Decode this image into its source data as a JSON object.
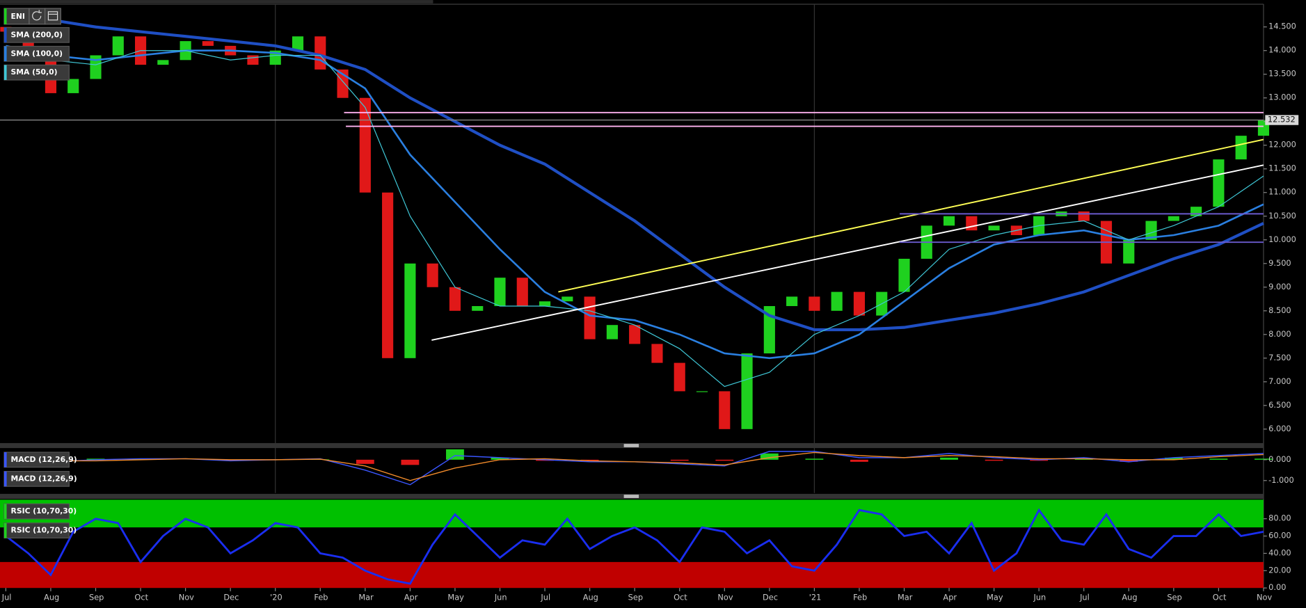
{
  "chart_data": [
    {
      "type": "candlestick",
      "symbol": "ENI",
      "up_color": "#1fd11f",
      "down_color": "#e01818",
      "x": [
        0,
        0.5,
        1,
        1.5,
        2,
        2.5,
        3,
        3.5,
        4,
        4.5,
        5,
        5.5,
        6,
        6.5,
        7,
        7.5,
        8,
        8.5,
        9,
        9.5,
        10,
        10.5,
        11,
        11.5,
        12,
        12.5,
        13,
        13.5,
        14,
        14.5,
        15,
        15.5,
        16,
        16.5,
        17,
        17.5,
        18,
        18.5,
        19,
        19.5,
        20,
        20.5,
        21,
        21.5,
        22,
        22.5,
        23,
        23.5,
        24,
        24.5,
        25,
        25.5,
        26,
        26.5,
        27,
        27.5,
        28
      ],
      "open": [
        14.5,
        14.4,
        14.0,
        13.1,
        13.4,
        13.9,
        14.3,
        13.7,
        13.8,
        14.2,
        14.1,
        13.9,
        13.7,
        14.0,
        14.3,
        13.6,
        13.0,
        11.0,
        7.5,
        9.5,
        9.0,
        8.5,
        8.6,
        9.2,
        8.6,
        8.7,
        8.8,
        7.9,
        8.2,
        7.8,
        7.4,
        6.8,
        6.8,
        6.0,
        7.6,
        8.6,
        8.8,
        8.5,
        8.9,
        8.4,
        8.9,
        9.6,
        10.3,
        10.5,
        10.2,
        10.3,
        10.1,
        10.5,
        10.6,
        10.4,
        9.5,
        10.0,
        10.4,
        10.5,
        10.7,
        11.7,
        12.2
      ],
      "close": [
        14.4,
        14.0,
        13.1,
        13.4,
        13.9,
        14.3,
        13.7,
        13.8,
        14.2,
        14.1,
        13.9,
        13.7,
        14.0,
        14.3,
        13.6,
        13.0,
        11.0,
        7.5,
        9.5,
        9.0,
        8.5,
        8.6,
        9.2,
        8.6,
        8.7,
        8.8,
        7.9,
        8.2,
        7.8,
        7.4,
        6.8,
        6.8,
        6.0,
        7.6,
        8.6,
        8.8,
        8.5,
        8.9,
        8.4,
        8.9,
        9.6,
        10.3,
        10.5,
        10.2,
        10.3,
        10.1,
        10.5,
        10.6,
        10.4,
        9.5,
        10.0,
        10.4,
        10.5,
        10.7,
        11.7,
        12.2,
        12.532
      ],
      "series": [
        {
          "name": "SMA (200,0)",
          "color": "#1f4fc4",
          "width": 3.5,
          "x": [
            0,
            1,
            2,
            3,
            4,
            5,
            6,
            7,
            8,
            9,
            10,
            11,
            12,
            13,
            14,
            15,
            16,
            17,
            18,
            19,
            20,
            21,
            22,
            23,
            24,
            25,
            26,
            27,
            28
          ],
          "values": [
            null,
            14.65,
            14.5,
            14.4,
            14.3,
            14.2,
            14.1,
            13.9,
            13.6,
            13.0,
            12.5,
            12.0,
            11.6,
            11.0,
            10.4,
            9.7,
            9.0,
            8.4,
            8.1,
            8.1,
            8.15,
            8.3,
            8.45,
            8.65,
            8.9,
            9.25,
            9.6,
            9.9,
            10.35
          ]
        },
        {
          "name": "SMA (100,0)",
          "color": "#2a7fe0",
          "width": 2.2,
          "x": [
            0,
            1,
            2,
            3,
            4,
            5,
            6,
            7,
            8,
            9,
            10,
            11,
            12,
            13,
            14,
            15,
            16,
            17,
            18,
            19,
            20,
            21,
            22,
            23,
            24,
            25,
            26,
            27,
            28
          ],
          "values": [
            14.1,
            13.9,
            13.8,
            13.9,
            14.0,
            14.0,
            13.95,
            13.8,
            13.2,
            11.8,
            10.8,
            9.8,
            8.9,
            8.4,
            8.3,
            8.0,
            7.6,
            7.5,
            7.6,
            8.0,
            8.7,
            9.4,
            9.9,
            10.1,
            10.2,
            10.0,
            10.1,
            10.3,
            10.75
          ]
        },
        {
          "name": "SMA (50,0)",
          "color": "#3fc7d6",
          "width": 1,
          "x": [
            0,
            1,
            2,
            3,
            4,
            5,
            6,
            7,
            8,
            9,
            10,
            11,
            12,
            13,
            14,
            15,
            16,
            17,
            18,
            19,
            20,
            21,
            22,
            23,
            24,
            25,
            26,
            27,
            28
          ],
          "values": [
            14.0,
            13.8,
            13.7,
            14.0,
            14.0,
            13.8,
            13.9,
            13.9,
            12.8,
            10.5,
            9.0,
            8.6,
            8.6,
            8.5,
            8.2,
            7.7,
            6.9,
            7.2,
            8.0,
            8.4,
            8.9,
            9.8,
            10.1,
            10.3,
            10.4,
            10.0,
            10.3,
            10.7,
            11.35
          ]
        }
      ],
      "lines": [
        {
          "color": "#ffff55",
          "x": [
            12.3,
            28
          ],
          "values": [
            8.9,
            12.12
          ]
        },
        {
          "color": "#ffffff",
          "x": [
            9.48,
            28
          ],
          "values": [
            7.88,
            11.58
          ]
        },
        {
          "color": "#ffb3f2",
          "x": [
            7.53,
            28
          ],
          "values": [
            12.69,
            12.69
          ]
        },
        {
          "color": "#ffb3f2",
          "x": [
            7.57,
            28
          ],
          "values": [
            12.4,
            12.4
          ]
        },
        {
          "color": "#6a5acd",
          "x": [
            19.9,
            28
          ],
          "values": [
            10.55,
            10.55
          ]
        },
        {
          "color": "#6a5acd",
          "x": [
            19.9,
            28
          ],
          "values": [
            9.95,
            9.95
          ]
        }
      ],
      "last_price": 12.532,
      "xlim": [
        -0.13,
        28.0
      ],
      "xgrid": [
        6,
        18
      ],
      "xticks": [
        {
          "value": 0,
          "label": "Jul"
        },
        {
          "value": 1,
          "label": "Aug"
        },
        {
          "value": 2,
          "label": "Sep"
        },
        {
          "value": 3,
          "label": "Oct"
        },
        {
          "value": 4,
          "label": "Nov"
        },
        {
          "value": 5,
          "label": "Dec"
        },
        {
          "value": 6,
          "label": "'20"
        },
        {
          "value": 7,
          "label": "Feb"
        },
        {
          "value": 8,
          "label": "Mar"
        },
        {
          "value": 9,
          "label": "Apr"
        },
        {
          "value": 10,
          "label": "May"
        },
        {
          "value": 11,
          "label": "Jun"
        },
        {
          "value": 12,
          "label": "Jul"
        },
        {
          "value": 13,
          "label": "Aug"
        },
        {
          "value": 14,
          "label": "Sep"
        },
        {
          "value": 15,
          "label": "Oct"
        },
        {
          "value": 16,
          "label": "Nov"
        },
        {
          "value": 17,
          "label": "Dec"
        },
        {
          "value": 18,
          "label": "'21"
        },
        {
          "value": 19,
          "label": "Feb"
        },
        {
          "value": 20,
          "label": "Mar"
        },
        {
          "value": 21,
          "label": "Apr"
        },
        {
          "value": 22,
          "label": "May"
        },
        {
          "value": 23,
          "label": "Jun"
        },
        {
          "value": 24,
          "label": "Jul"
        },
        {
          "value": 25,
          "label": "Aug"
        },
        {
          "value": 26,
          "label": "Sep"
        },
        {
          "value": 27,
          "label": "Oct"
        },
        {
          "value": 28,
          "label": "Nov"
        }
      ],
      "ylim": [
        5.74,
        14.98
      ],
      "yticks": [
        {
          "value": 6,
          "label": "6.000"
        },
        {
          "value": 6.5,
          "label": "6.500"
        },
        {
          "value": 7,
          "label": "7.000"
        },
        {
          "value": 7.5,
          "label": "7.500"
        },
        {
          "value": 8,
          "label": "8.000"
        },
        {
          "value": 8.5,
          "label": "8.500"
        },
        {
          "value": 9,
          "label": "9.000"
        },
        {
          "value": 9.5,
          "label": "9.500"
        },
        {
          "value": 10,
          "label": "10.000"
        },
        {
          "value": 10.5,
          "label": "10.500"
        },
        {
          "value": 11,
          "label": "11.000"
        },
        {
          "value": 11.5,
          "label": "11.500"
        },
        {
          "value": 12,
          "label": "12.000"
        },
        {
          "value": 12.5,
          "label": "12.500"
        },
        {
          "value": 13,
          "label": "13.000"
        },
        {
          "value": 13.5,
          "label": "13.500"
        },
        {
          "value": 14,
          "label": "14.000"
        },
        {
          "value": 14.5,
          "label": "14.500"
        }
      ]
    },
    {
      "type": "macd",
      "series": [
        {
          "name": "MACD (12,26,9)",
          "color": "#3a56ff",
          "x": [
            0,
            1,
            2,
            3,
            4,
            5,
            6,
            7,
            8,
            9,
            10,
            11,
            12,
            13,
            14,
            15,
            16,
            17,
            18,
            19,
            20,
            21,
            22,
            23,
            24,
            25,
            26,
            27,
            28
          ],
          "values": [
            0.05,
            -0.1,
            0.0,
            0.05,
            0.05,
            -0.05,
            0.0,
            0.05,
            -0.5,
            -1.2,
            0.2,
            0.1,
            0.0,
            -0.1,
            -0.1,
            -0.2,
            -0.3,
            0.4,
            0.4,
            0.1,
            0.1,
            0.3,
            0.1,
            0.0,
            0.1,
            -0.1,
            0.1,
            0.2,
            0.3
          ]
        },
        {
          "name": "MACD (12,26,9)",
          "color": "#f08a2a",
          "x": [
            0,
            1,
            2,
            3,
            4,
            5,
            6,
            7,
            8,
            9,
            10,
            11,
            12,
            13,
            14,
            15,
            16,
            17,
            18,
            19,
            20,
            21,
            22,
            23,
            24,
            25,
            26,
            27,
            28
          ],
          "values": [
            0.05,
            -0.05,
            -0.05,
            0.0,
            0.05,
            0.0,
            0.0,
            0.03,
            -0.3,
            -1.0,
            -0.4,
            0.0,
            0.05,
            -0.05,
            -0.1,
            -0.15,
            -0.25,
            0.1,
            0.35,
            0.2,
            0.1,
            0.2,
            0.15,
            0.05,
            0.05,
            0.0,
            0.0,
            0.15,
            0.25
          ]
        }
      ],
      "histogram": {
        "up_color": "#1fd11f",
        "down_color": "#e01818",
        "x": [
          0,
          1,
          2,
          3,
          4,
          5,
          6,
          7,
          8,
          9,
          10,
          11,
          12,
          13,
          14,
          15,
          16,
          17,
          18,
          19,
          20,
          21,
          22,
          23,
          24,
          25,
          26,
          27,
          28
        ],
        "values": [
          0,
          -0.05,
          0.05,
          0.05,
          0,
          -0.05,
          0,
          0.02,
          -0.2,
          -0.25,
          0.5,
          0.1,
          -0.05,
          -0.05,
          0,
          -0.05,
          -0.05,
          0.3,
          0.05,
          -0.1,
          0,
          0.1,
          -0.05,
          -0.05,
          0.05,
          -0.1,
          0.1,
          0.05,
          0.05
        ]
      },
      "ylim": [
        -1.6,
        0.48
      ],
      "yticks": [
        {
          "value": 0,
          "label": "0.000"
        },
        {
          "value": -1,
          "label": "-1.000"
        }
      ]
    },
    {
      "type": "rsi",
      "legend": [
        "RSIC (10,70,30)",
        "RSIC (10,70,30)"
      ],
      "upper_band": 70,
      "lower_band": 30,
      "upper_color": "#00c000",
      "lower_color": "#c00000",
      "series": [
        {
          "name": "RSIC (10,70,30)",
          "color": "#1a2ef0",
          "x": [
            0,
            0.5,
            1,
            1.5,
            2,
            2.5,
            3,
            3.5,
            4,
            4.5,
            5,
            5.5,
            6,
            6.5,
            7,
            7.5,
            8,
            8.5,
            9,
            9.5,
            10,
            10.5,
            11,
            11.5,
            12,
            12.5,
            13,
            13.5,
            14,
            14.5,
            15,
            15.5,
            16,
            16.5,
            17,
            17.5,
            18,
            18.5,
            19,
            19.5,
            20,
            20.5,
            21,
            21.5,
            22,
            22.5,
            23,
            23.5,
            24,
            24.5,
            25,
            25.5,
            26,
            26.5,
            27,
            27.5,
            28
          ],
          "values": [
            60,
            40,
            15,
            65,
            80,
            75,
            30,
            60,
            80,
            70,
            40,
            55,
            75,
            70,
            40,
            35,
            20,
            10,
            5,
            50,
            85,
            60,
            35,
            55,
            50,
            80,
            45,
            60,
            70,
            55,
            30,
            70,
            65,
            40,
            55,
            25,
            20,
            50,
            90,
            85,
            60,
            65,
            40,
            75,
            20,
            40,
            90,
            55,
            50,
            85,
            45,
            35,
            60,
            60,
            85,
            60,
            65
          ]
        }
      ],
      "ylim": [
        0,
        102
      ],
      "yticks": [
        {
          "value": 0,
          "label": "0.00"
        },
        {
          "value": 20,
          "label": "20.00"
        },
        {
          "value": 40,
          "label": "40.00"
        },
        {
          "value": 60,
          "label": "60.00"
        },
        {
          "value": 80,
          "label": "80.00"
        }
      ]
    }
  ]
}
